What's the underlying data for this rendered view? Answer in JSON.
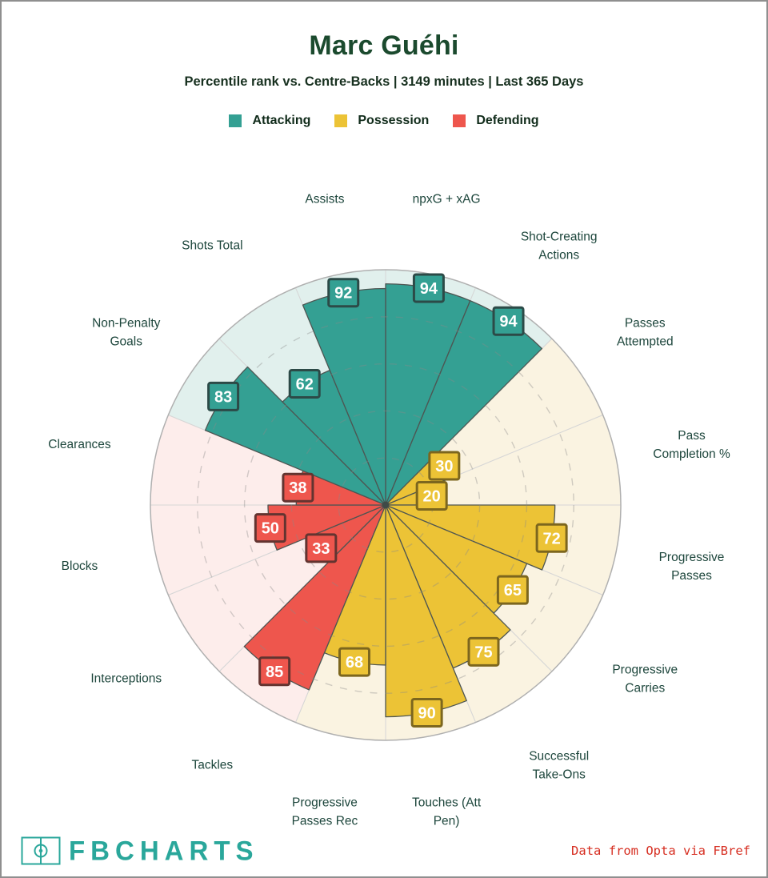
{
  "header": {
    "title": "Marc Guéhi",
    "title_color": "#1b4a2e",
    "subtitle": "Percentile rank vs. Centre-Backs | 3149 minutes | Last 365 Days",
    "subtitle_color": "#17301f"
  },
  "legend": [
    {
      "label": "Attacking",
      "color": "#34a093"
    },
    {
      "label": "Possession",
      "color": "#ecc336"
    },
    {
      "label": "Defending",
      "color": "#ee564d"
    }
  ],
  "legend_label_color": "#102b1a",
  "chart_data": {
    "type": "pizza (polar percentile bar)",
    "scale": {
      "min": 0,
      "max": 100
    },
    "gridlines_pct": [
      20,
      40,
      60,
      80
    ],
    "slice_span_deg": 22.5,
    "start": "12 o'clock, clockwise",
    "axis_label_color": "#1d463c",
    "groups": {
      "attacking": {
        "fill": "#34a093",
        "bg": "#e1f0ed",
        "badge_border": "#2c4a47"
      },
      "possession": {
        "fill": "#ecc336",
        "bg": "#faf3e1",
        "badge_border": "#7c661e"
      },
      "defending": {
        "fill": "#ee564d",
        "bg": "#fdedeb",
        "badge_border": "#633430"
      }
    },
    "slices": [
      {
        "label_lines": [
          "npxG + xAG"
        ],
        "value": 94,
        "group": "attacking"
      },
      {
        "label_lines": [
          "Shot-Creating",
          "Actions"
        ],
        "value": 94,
        "group": "attacking"
      },
      {
        "label_lines": [
          "Passes",
          "Attempted"
        ],
        "value": 30,
        "group": "possession"
      },
      {
        "label_lines": [
          "Pass",
          "Completion %"
        ],
        "value": 20,
        "group": "possession"
      },
      {
        "label_lines": [
          "Progressive",
          "Passes"
        ],
        "value": 72,
        "group": "possession"
      },
      {
        "label_lines": [
          "Progressive",
          "Carries"
        ],
        "value": 65,
        "group": "possession"
      },
      {
        "label_lines": [
          "Successful",
          "Take-Ons"
        ],
        "value": 75,
        "group": "possession"
      },
      {
        "label_lines": [
          "Touches (Att",
          "Pen)"
        ],
        "value": 90,
        "group": "possession"
      },
      {
        "label_lines": [
          "Progressive",
          "Passes Rec"
        ],
        "value": 68,
        "group": "possession"
      },
      {
        "label_lines": [
          "Tackles"
        ],
        "value": 85,
        "group": "defending"
      },
      {
        "label_lines": [
          "Interceptions"
        ],
        "value": 33,
        "group": "defending"
      },
      {
        "label_lines": [
          "Blocks"
        ],
        "value": 50,
        "group": "defending"
      },
      {
        "label_lines": [
          "Clearances"
        ],
        "value": 38,
        "group": "defending"
      },
      {
        "label_lines": [
          "Non-Penalty",
          "Goals"
        ],
        "value": 83,
        "group": "attacking"
      },
      {
        "label_lines": [
          "Shots Total"
        ],
        "value": 62,
        "group": "attacking"
      },
      {
        "label_lines": [
          "Assists"
        ],
        "value": 92,
        "group": "attacking"
      }
    ]
  },
  "footer": {
    "brand": "FBCHARTS",
    "brand_color": "#2aa79b",
    "credit": "Data from Opta via FBref",
    "credit_color": "#d62d20"
  }
}
